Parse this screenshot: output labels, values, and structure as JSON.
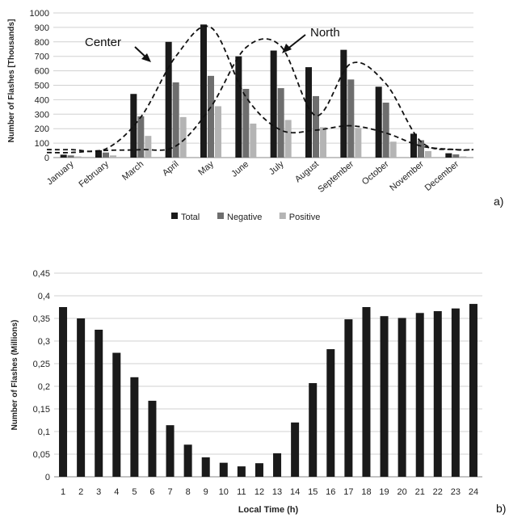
{
  "chart_data": [
    {
      "type": "bar",
      "panel_label": "a)",
      "ylabel": "Number of Flashes [Thousands]",
      "ylim": [
        0,
        1000
      ],
      "yticks": [
        0,
        100,
        200,
        300,
        400,
        500,
        600,
        700,
        800,
        900,
        1000
      ],
      "grid": true,
      "legend_position": "bottom",
      "categories": [
        "January",
        "February",
        "March",
        "April",
        "May",
        "June",
        "July",
        "August",
        "September",
        "October",
        "November",
        "December"
      ],
      "series": [
        {
          "name": "Total",
          "color": "#1a1a1a",
          "values": [
            20,
            50,
            440,
            800,
            920,
            700,
            740,
            625,
            745,
            490,
            165,
            30
          ]
        },
        {
          "name": "Negative",
          "color": "#6e6e6e",
          "values": [
            15,
            35,
            285,
            520,
            565,
            475,
            480,
            425,
            540,
            380,
            120,
            22
          ]
        },
        {
          "name": "Positive",
          "color": "#b4b4b4",
          "values": [
            8,
            15,
            150,
            280,
            355,
            235,
            260,
            210,
            205,
            110,
            45,
            8
          ]
        }
      ],
      "curves": [
        {
          "name": "Center",
          "values": [
            55,
            60,
            280,
            700,
            900,
            420,
            190,
            190,
            220,
            170,
            80,
            55
          ]
        },
        {
          "name": "North",
          "values": [
            35,
            50,
            55,
            80,
            350,
            760,
            770,
            290,
            650,
            510,
            110,
            55
          ]
        }
      ],
      "annotations": [
        "Center",
        "North"
      ]
    },
    {
      "type": "bar",
      "panel_label": "b)",
      "xlabel": "Local Time (h)",
      "ylabel": "Number of Flashes (Millions)",
      "ylim": [
        0,
        0.45
      ],
      "yticks": [
        "0",
        "0,05",
        "0,1",
        "0,15",
        "0,2",
        "0,25",
        "0,3",
        "0,35",
        "0,4",
        "0,45"
      ],
      "grid": true,
      "color": "#1a1a1a",
      "categories": [
        "1",
        "2",
        "3",
        "4",
        "5",
        "6",
        "7",
        "8",
        "9",
        "10",
        "11",
        "12",
        "13",
        "14",
        "15",
        "16",
        "17",
        "18",
        "19",
        "20",
        "21",
        "22",
        "23",
        "24"
      ],
      "values": [
        0.375,
        0.35,
        0.325,
        0.274,
        0.22,
        0.168,
        0.114,
        0.071,
        0.043,
        0.031,
        0.023,
        0.03,
        0.052,
        0.12,
        0.207,
        0.282,
        0.348,
        0.375,
        0.355,
        0.351,
        0.362,
        0.366,
        0.372,
        0.382
      ]
    }
  ]
}
